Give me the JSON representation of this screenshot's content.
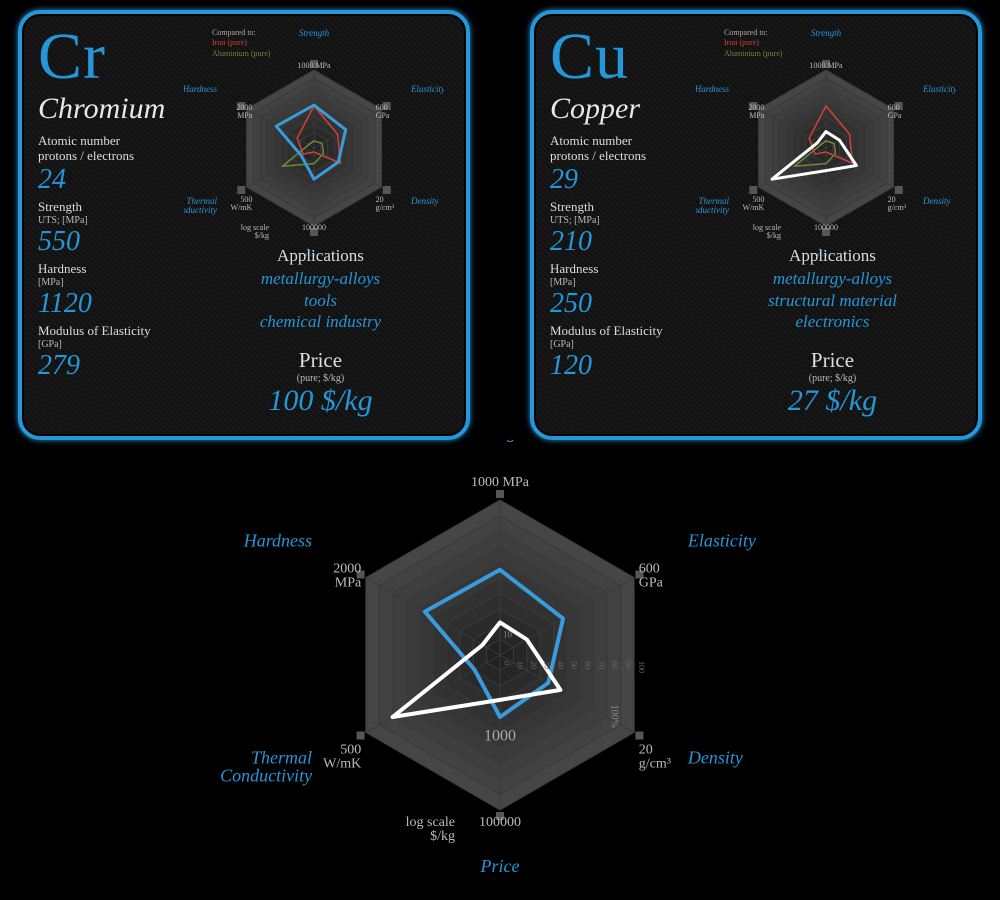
{
  "colors": {
    "accent": "#2596d8",
    "bg": "#000000",
    "card_bg": "#151515",
    "border": "#2596d8",
    "text": "#e8e8e8",
    "grid": "#3a3a3a",
    "grid_light": "#555555",
    "iron": "#cc4433",
    "aluminium": "#6a8a3a",
    "series_a": "#3a9bdc",
    "series_b": "#ffffff"
  },
  "axes": [
    {
      "key": "strength",
      "label": "Strength",
      "scale": "1000 MPa"
    },
    {
      "key": "elasticity",
      "label": "Elasticity",
      "scale": "600\nGPa"
    },
    {
      "key": "density",
      "label": "Density",
      "scale": "20\ng/cm³"
    },
    {
      "key": "price",
      "label": "Price",
      "scale": "100000",
      "sub": "log scale\n$/kg"
    },
    {
      "key": "thermal",
      "label": "Thermal\nConductivity",
      "scale": "500\nW/mK"
    },
    {
      "key": "hardness",
      "label": "Hardness",
      "scale": "2000\nMPa"
    }
  ],
  "radar_rings": [
    10,
    20,
    30,
    40,
    50,
    60,
    70,
    80,
    90,
    100
  ],
  "elements": [
    {
      "symbol": "Cr",
      "name": "Chromium",
      "atomic_label": "Atomic number\nprotons / electrons",
      "atomic": "24",
      "strength_label": "Strength",
      "strength_unit": "UTS; [MPa]",
      "strength": "550",
      "hardness_label": "Hardness",
      "hardness_unit": "[MPa]",
      "hardness": "1120",
      "modulus_label": "Modulus of Elasticity",
      "modulus_unit": "[GPa]",
      "modulus": "279",
      "apps_label": "Applications",
      "apps": "metallurgy-alloys\ntools\nchemical industry",
      "price_label": "Price",
      "price_unit": "(pure; $/kg)",
      "price": "100 $/kg",
      "legend": {
        "title": "Compared to:",
        "iron": "Iron (pure)",
        "alum": "Aluminium (pure)"
      },
      "radar_pct": {
        "strength": 55,
        "elasticity": 47,
        "density": 36,
        "price": 40,
        "thermal": 19,
        "hardness": 56
      },
      "iron_pct": {
        "strength": 54,
        "elasticity": 35,
        "density": 39,
        "price": 5,
        "thermal": 16,
        "hardness": 25
      },
      "alum_pct": {
        "strength": 9,
        "elasticity": 12,
        "density": 14,
        "price": 20,
        "thermal": 47,
        "hardness": 8
      }
    },
    {
      "symbol": "Cu",
      "name": "Copper",
      "atomic_label": "Atomic number\nprotons / electrons",
      "atomic": "29",
      "strength_label": "Strength",
      "strength_unit": "UTS; [MPa]",
      "strength": "210",
      "hardness_label": "Hardness",
      "hardness_unit": "[MPa]",
      "hardness": "250",
      "modulus_label": "Modulus of Elasticity",
      "modulus_unit": "[GPa]",
      "modulus": "120",
      "apps_label": "Applications",
      "apps": "metallurgy-alloys\nstructural material\nelectronics",
      "price_label": "Price",
      "price_unit": "(pure; $/kg)",
      "price": "27 $/kg",
      "legend": {
        "title": "Compared to:",
        "iron": "Iron (pure)",
        "alum": "Aluminium (pure)"
      },
      "radar_pct": {
        "strength": 21,
        "elasticity": 20,
        "density": 45,
        "price": 29,
        "thermal": 80,
        "hardness": 13
      },
      "iron_pct": {
        "strength": 54,
        "elasticity": 35,
        "density": 39,
        "price": 5,
        "thermal": 16,
        "hardness": 25
      },
      "alum_pct": {
        "strength": 9,
        "elasticity": 12,
        "density": 14,
        "price": 20,
        "thermal": 47,
        "hardness": 8
      }
    }
  ],
  "big_radar": {
    "ring_labels": [
      "10",
      "20",
      "30",
      "40",
      "50",
      "60",
      "70",
      "80",
      "90",
      "100"
    ],
    "inner_label": "1000",
    "density_side": "100%",
    "series": [
      {
        "name": "Chromium",
        "color": "#3a9bdc",
        "stroke": 4,
        "pct": {
          "strength": 55,
          "elasticity": 47,
          "density": 36,
          "price": 40,
          "thermal": 19,
          "hardness": 56
        }
      },
      {
        "name": "Copper",
        "color": "#ffffff",
        "stroke": 4,
        "pct": {
          "strength": 21,
          "elasticity": 20,
          "density": 45,
          "price": 29,
          "thermal": 80,
          "hardness": 13
        }
      }
    ]
  }
}
